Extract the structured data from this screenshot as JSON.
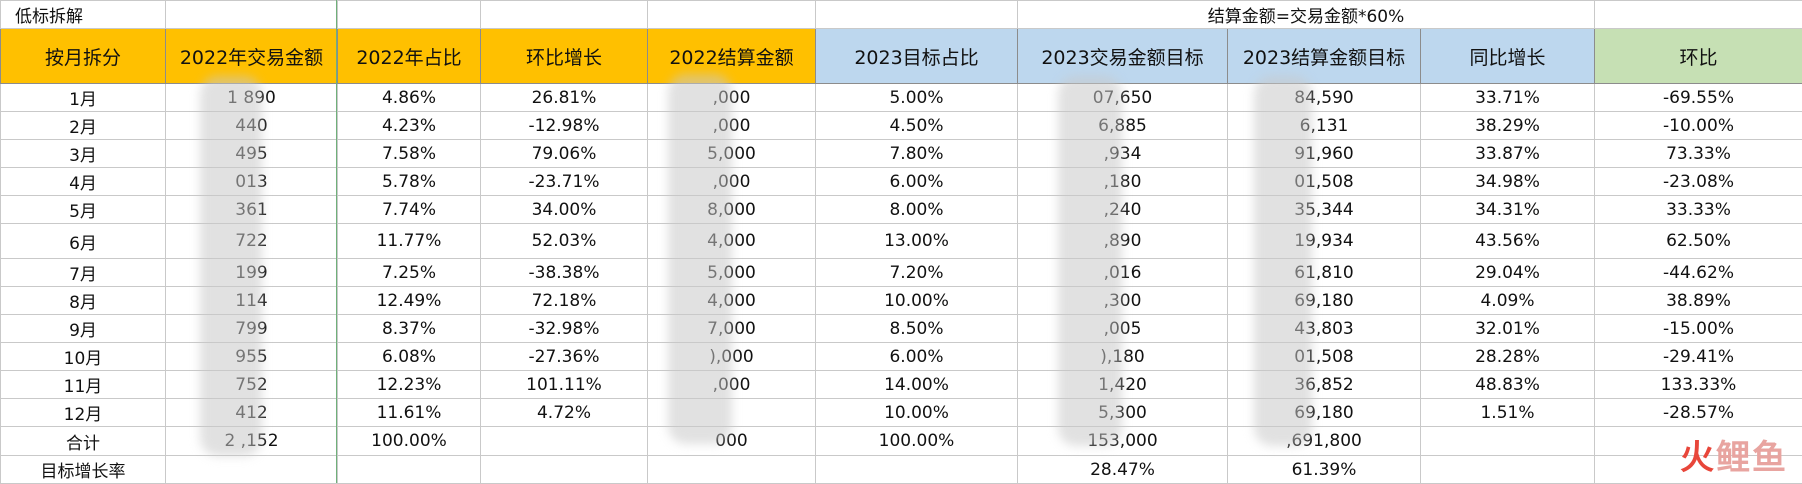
{
  "title_left": "低标拆解",
  "title_note": "结算金额=交易金额*60%",
  "headers": [
    "按月拆分",
    "2022年交易金额",
    "2022年占比",
    "环比增长",
    "2022结算金额",
    "2023目标占比",
    "2023交易金额目标",
    "2023结算金额目标",
    "同比增长",
    "环比"
  ],
  "header_colors": {
    "yellow": "#ffc000",
    "blue": "#bdd7ee",
    "green": "#c6e0b4"
  },
  "rows": [
    [
      "1月",
      "1 890",
      "4.86%",
      "26.81%",
      ",000",
      "5.00%",
      "07,650",
      "84,590",
      "33.71%",
      "-69.55%"
    ],
    [
      "2月",
      "440",
      "4.23%",
      "-12.98%",
      ",000",
      "4.50%",
      "6,885",
      "6,131",
      "38.29%",
      "-10.00%"
    ],
    [
      "3月",
      "495",
      "7.58%",
      "79.06%",
      "5,000",
      "7.80%",
      ",934",
      "91,960",
      "33.87%",
      "73.33%"
    ],
    [
      "4月",
      "013",
      "5.78%",
      "-23.71%",
      ",000",
      "6.00%",
      ",180",
      "01,508",
      "34.98%",
      "-23.08%"
    ],
    [
      "5月",
      "361",
      "7.74%",
      "34.00%",
      "8,000",
      "8.00%",
      ",240",
      "35,344",
      "34.31%",
      "33.33%"
    ],
    [
      "6月",
      "722",
      "11.77%",
      "52.03%",
      "4,000",
      "13.00%",
      ",890",
      "19,934",
      "43.56%",
      "62.50%"
    ],
    [
      "7月",
      "199",
      "7.25%",
      "-38.38%",
      "5,000",
      "7.20%",
      ",016",
      "61,810",
      "29.04%",
      "-44.62%"
    ],
    [
      "8月",
      "114",
      "12.49%",
      "72.18%",
      "4,000",
      "10.00%",
      ",300",
      "69,180",
      "4.09%",
      "38.89%"
    ],
    [
      "9月",
      "799",
      "8.37%",
      "-32.98%",
      "7,000",
      "8.50%",
      ",005",
      "43,803",
      "32.01%",
      "-15.00%"
    ],
    [
      "10月",
      "955",
      "6.08%",
      "-27.36%",
      "),000",
      "6.00%",
      "),180",
      "01,508",
      "28.28%",
      "-29.41%"
    ],
    [
      "11月",
      "752",
      "12.23%",
      "101.11%",
      ",000",
      "14.00%",
      "1,420",
      "36,852",
      "48.83%",
      "133.33%"
    ],
    [
      "12月",
      "412",
      "11.61%",
      "4.72%",
      "",
      "10.00%",
      "5,300",
      "69,180",
      "1.51%",
      "-28.57%"
    ]
  ],
  "total": [
    "合计",
    "2 ,152",
    "100.00%",
    "",
    "000",
    "100.00%",
    "153,000",
    ",691,800",
    "",
    ""
  ],
  "rate": [
    "目标增长率",
    "",
    "",
    "",
    "",
    "",
    "28.47%",
    "61.39%",
    "",
    ""
  ],
  "watermark": [
    "火",
    "鲤鱼"
  ]
}
